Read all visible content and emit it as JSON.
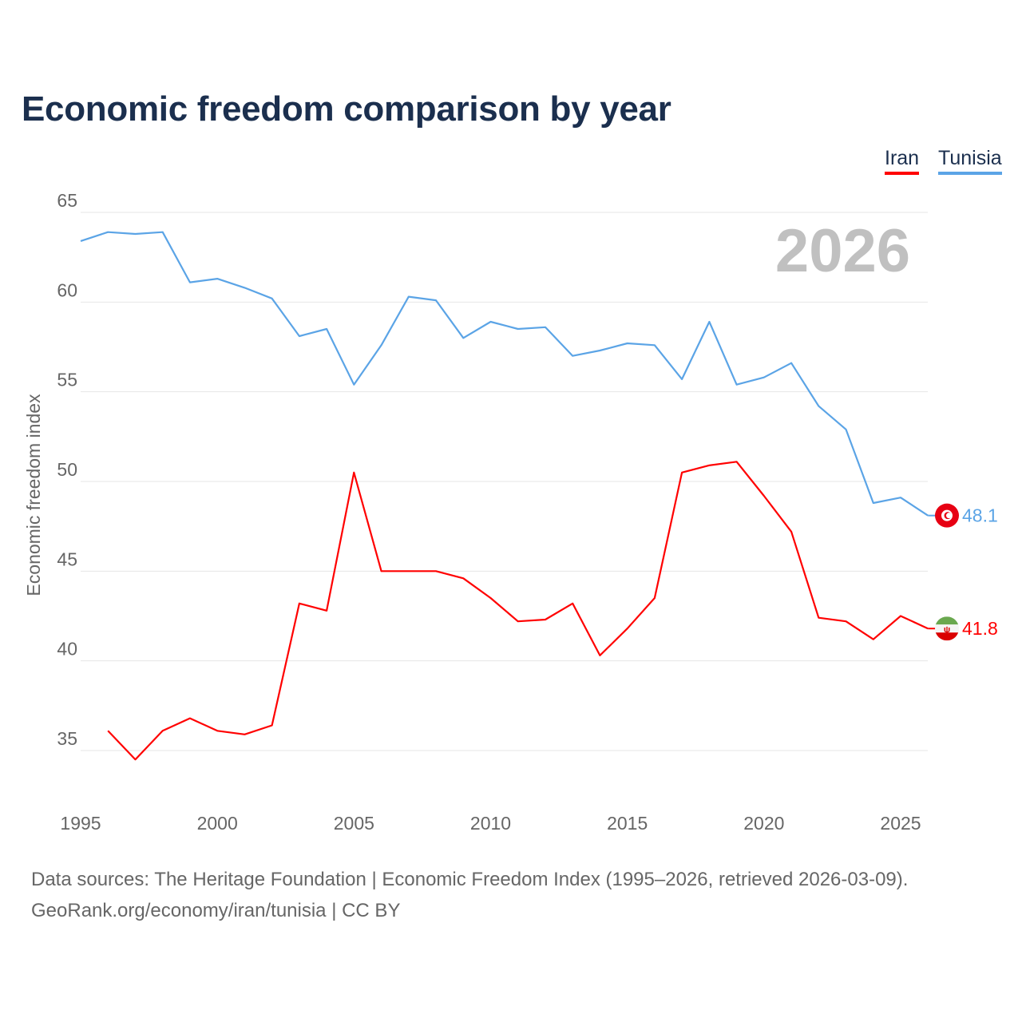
{
  "title": "Economic freedom comparison by year",
  "source_line1": "Data sources: The Heritage Foundation | Economic Freedom Index (1995–2026, retrieved 2026-03-09).",
  "source_line2": "GeoRank.org/economy/iran/tunisia | CC BY",
  "chart_data": {
    "type": "line",
    "title": "Economic freedom comparison by year",
    "xlabel": "",
    "ylabel": "Economic freedom index",
    "year_label": "2026",
    "xlim": [
      1995,
      2026
    ],
    "ylim": [
      32,
      65
    ],
    "xticks": [
      1995,
      2000,
      2005,
      2010,
      2015,
      2020,
      2025
    ],
    "yticks": [
      35,
      40,
      45,
      50,
      55,
      60,
      65
    ],
    "grid": true,
    "legend_position": "top-right",
    "x": [
      1995,
      1996,
      1997,
      1998,
      1999,
      2000,
      2001,
      2002,
      2003,
      2004,
      2005,
      2006,
      2007,
      2008,
      2009,
      2010,
      2011,
      2012,
      2013,
      2014,
      2015,
      2016,
      2017,
      2018,
      2019,
      2020,
      2021,
      2022,
      2023,
      2024,
      2025,
      2026
    ],
    "series": [
      {
        "name": "Iran",
        "color": "#ff0000",
        "end_label": "41.8",
        "flag": "iran-flag",
        "values": [
          null,
          36.1,
          34.5,
          36.1,
          36.8,
          36.1,
          35.9,
          36.4,
          43.2,
          42.8,
          50.5,
          45.0,
          45.0,
          45.0,
          44.6,
          43.5,
          42.2,
          42.3,
          43.2,
          40.3,
          41.8,
          43.5,
          50.5,
          50.9,
          51.1,
          49.2,
          47.2,
          42.4,
          42.2,
          41.2,
          42.5,
          41.8
        ]
      },
      {
        "name": "Tunisia",
        "color": "#5ba4e6",
        "end_label": "48.1",
        "flag": "tunisia-flag",
        "values": [
          63.4,
          63.9,
          63.8,
          63.9,
          61.1,
          61.3,
          60.8,
          60.2,
          58.1,
          58.5,
          55.4,
          57.6,
          60.3,
          60.1,
          58.0,
          58.9,
          58.5,
          58.6,
          57.0,
          57.3,
          57.7,
          57.6,
          55.7,
          58.9,
          55.4,
          55.8,
          56.6,
          54.2,
          52.9,
          48.8,
          49.1,
          48.1
        ]
      }
    ]
  }
}
